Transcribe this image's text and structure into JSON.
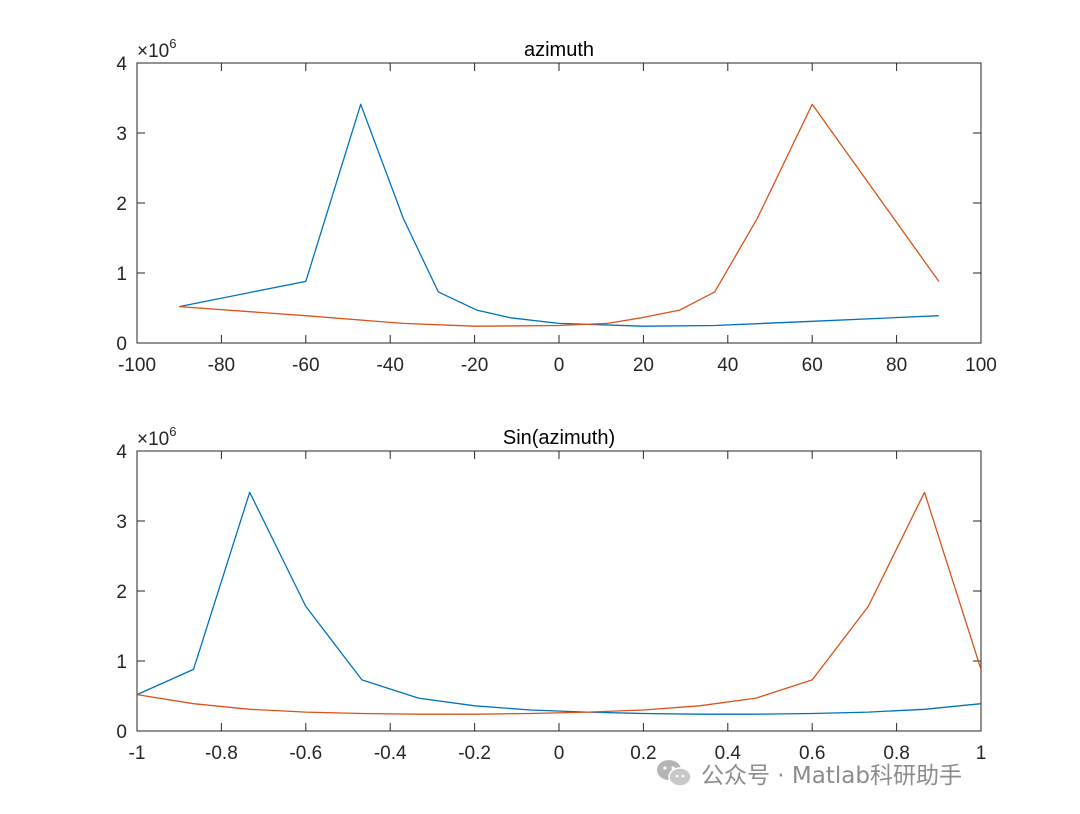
{
  "watermark": {
    "text": "公众号 · Matlab科研助手",
    "icon": "wechat-icon",
    "color": "#8c8c8c"
  },
  "chart_data": [
    {
      "type": "line",
      "title": "azimuth",
      "xlabel": "",
      "ylabel": "",
      "xlim": [
        -100,
        100
      ],
      "ylim": [
        0,
        4000000
      ],
      "xticks": [
        -100,
        -80,
        -60,
        -40,
        -20,
        0,
        20,
        40,
        60,
        80,
        100
      ],
      "xtick_labels": [
        "-100",
        "-80",
        "-60",
        "-40",
        "-20",
        "0",
        "20",
        "40",
        "60",
        "80",
        "100"
      ],
      "yticks": [
        0,
        1000000,
        2000000,
        3000000,
        4000000
      ],
      "ytick_labels": [
        "0",
        "1",
        "2",
        "3",
        "4"
      ],
      "y_exponent_base": "×10",
      "y_exponent_power": "6",
      "grid": false,
      "series": [
        {
          "color": "#0072BD",
          "x": [
            -90,
            -60,
            -47,
            -36.9,
            -28.6,
            -19.5,
            -11.5,
            0,
            20,
            36.9,
            60,
            90
          ],
          "y": [
            520000,
            880000,
            3410000,
            1780000,
            730000,
            470000,
            360000,
            280000,
            240000,
            250000,
            310000,
            390000
          ]
        },
        {
          "color": "#D95319",
          "x": [
            -90,
            -60,
            -36.9,
            -20,
            0,
            11.5,
            19.5,
            28.6,
            36.9,
            47,
            60,
            90
          ],
          "y": [
            520000,
            390000,
            280000,
            240000,
            250000,
            280000,
            360000,
            470000,
            730000,
            1780000,
            3410000,
            880000
          ]
        }
      ]
    },
    {
      "type": "line",
      "title": "Sin(azimuth)",
      "xlabel": "",
      "ylabel": "",
      "xlim": [
        -1,
        1
      ],
      "ylim": [
        0,
        4000000
      ],
      "xticks": [
        -1,
        -0.8,
        -0.6,
        -0.4,
        -0.2,
        0,
        0.2,
        0.4,
        0.6,
        0.8,
        1
      ],
      "xtick_labels": [
        "-1",
        "-0.8",
        "-0.6",
        "-0.4",
        "-0.2",
        "0",
        "0.2",
        "0.4",
        "0.6",
        "0.8",
        "1"
      ],
      "yticks": [
        0,
        1000000,
        2000000,
        3000000,
        4000000
      ],
      "ytick_labels": [
        "0",
        "1",
        "2",
        "3",
        "4"
      ],
      "y_exponent_base": "×10",
      "y_exponent_power": "6",
      "grid": false,
      "series": [
        {
          "color": "#0072BD",
          "x": [
            -1,
            -0.866,
            -0.733,
            -0.6,
            -0.467,
            -0.333,
            -0.2,
            -0.067,
            0.067,
            0.2,
            0.333,
            0.467,
            0.6,
            0.733,
            0.866,
            1
          ],
          "y": [
            520000,
            880000,
            3410000,
            1780000,
            730000,
            470000,
            360000,
            300000,
            270000,
            250000,
            240000,
            240000,
            250000,
            270000,
            310000,
            390000
          ]
        },
        {
          "color": "#D95319",
          "x": [
            -1,
            -0.866,
            -0.733,
            -0.6,
            -0.467,
            -0.333,
            -0.2,
            -0.067,
            0.067,
            0.2,
            0.333,
            0.467,
            0.6,
            0.733,
            0.866,
            1
          ],
          "y": [
            520000,
            390000,
            310000,
            270000,
            250000,
            240000,
            240000,
            250000,
            270000,
            300000,
            360000,
            470000,
            730000,
            1780000,
            3410000,
            880000
          ]
        }
      ]
    }
  ]
}
